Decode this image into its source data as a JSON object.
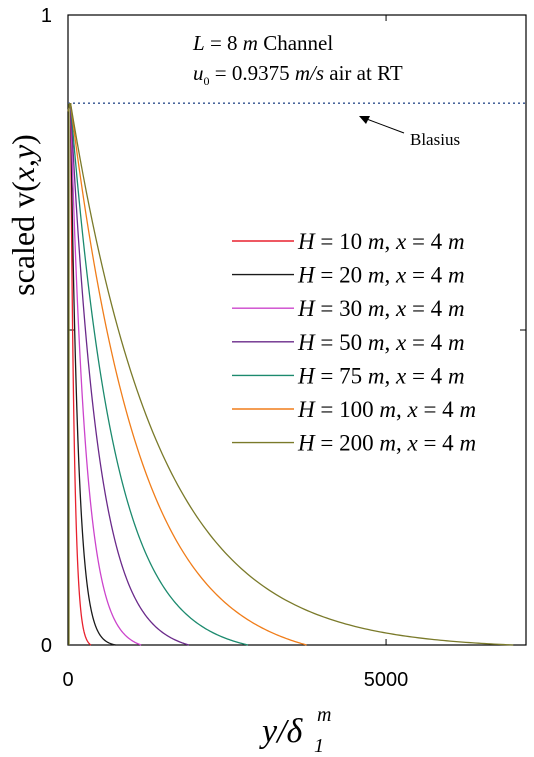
{
  "chart_data": {
    "type": "line",
    "title": "",
    "xlabel": {
      "base": "y/",
      "delta": "δ",
      "sub": "1",
      "sup": "m"
    },
    "ylabel": {
      "prefix": "scaled v(",
      "x": "x",
      "comma": ",",
      "y": "y",
      "suffix": ")"
    },
    "xlim": [
      0,
      7200
    ],
    "ylim": [
      0,
      1
    ],
    "x_ticks": [
      {
        "value": 0,
        "label": "0"
      },
      {
        "value": 5000,
        "label": "5000"
      }
    ],
    "y_ticks": [
      {
        "value": 0,
        "label": "0"
      },
      {
        "value": 1,
        "label": "1"
      }
    ],
    "minor_y_tick": 0.5,
    "grid": false,
    "legend_position": "center-right",
    "annotation": {
      "line1": {
        "L": "L",
        "eq": " = 8 ",
        "m": "m",
        "rest": " Channel"
      },
      "line2": {
        "u": "u",
        "sub": "0",
        "eq": " = 0.9375 ",
        "unit": "m/s",
        "rest": " air at RT"
      }
    },
    "blasius": {
      "label": "Blasius",
      "y": 0.86,
      "color": "#2e4e8c"
    },
    "series": [
      {
        "name": {
          "H": "H",
          "val": " = 10 ",
          "m1": "m",
          "comma": ", ",
          "x": "x",
          "eq2": " = 4 ",
          "m2": "m"
        },
        "color": "#e8212e",
        "scale": 60,
        "cutoff": 360
      },
      {
        "name": {
          "H": "H",
          "val": " = 20 ",
          "m1": "m",
          "comma": ", ",
          "x": "x",
          "eq2": " = 4 ",
          "m2": "m"
        },
        "color": "#1a1a1a",
        "scale": 120,
        "cutoff": 750
      },
      {
        "name": {
          "H": "H",
          "val": " = 30 ",
          "m1": "m",
          "comma": ", ",
          "x": "x",
          "eq2": " = 4 ",
          "m2": "m"
        },
        "color": "#cc44cc",
        "scale": 240,
        "cutoff": 1150
      },
      {
        "name": {
          "H": "H",
          "val": " = 50 ",
          "m1": "m",
          "comma": ", ",
          "x": "x",
          "eq2": " = 4 ",
          "m2": "m"
        },
        "color": "#6a2a8a",
        "scale": 440,
        "cutoff": 1900
      },
      {
        "name": {
          "H": "H",
          "val": " = 75 ",
          "m1": "m",
          "comma": ", ",
          "x": "x",
          "eq2": " = 4 ",
          "m2": "m"
        },
        "color": "#1c8a6e",
        "scale": 700,
        "cutoff": 2830
      },
      {
        "name": {
          "H": "H",
          "val": " = 100 ",
          "m1": "m",
          "comma": ", ",
          "x": "x",
          "eq2": " = 4 ",
          "m2": "m"
        },
        "color": "#f07d1a",
        "scale": 1100,
        "cutoff": 3750
      },
      {
        "name": {
          "H": "H",
          "val": " = 200 ",
          "m1": "m",
          "comma": ", ",
          "x": "x",
          "eq2": " = 4 ",
          "m2": "m"
        },
        "color": "#7a7a2a",
        "scale": 1400,
        "cutoff": 7000
      }
    ]
  }
}
